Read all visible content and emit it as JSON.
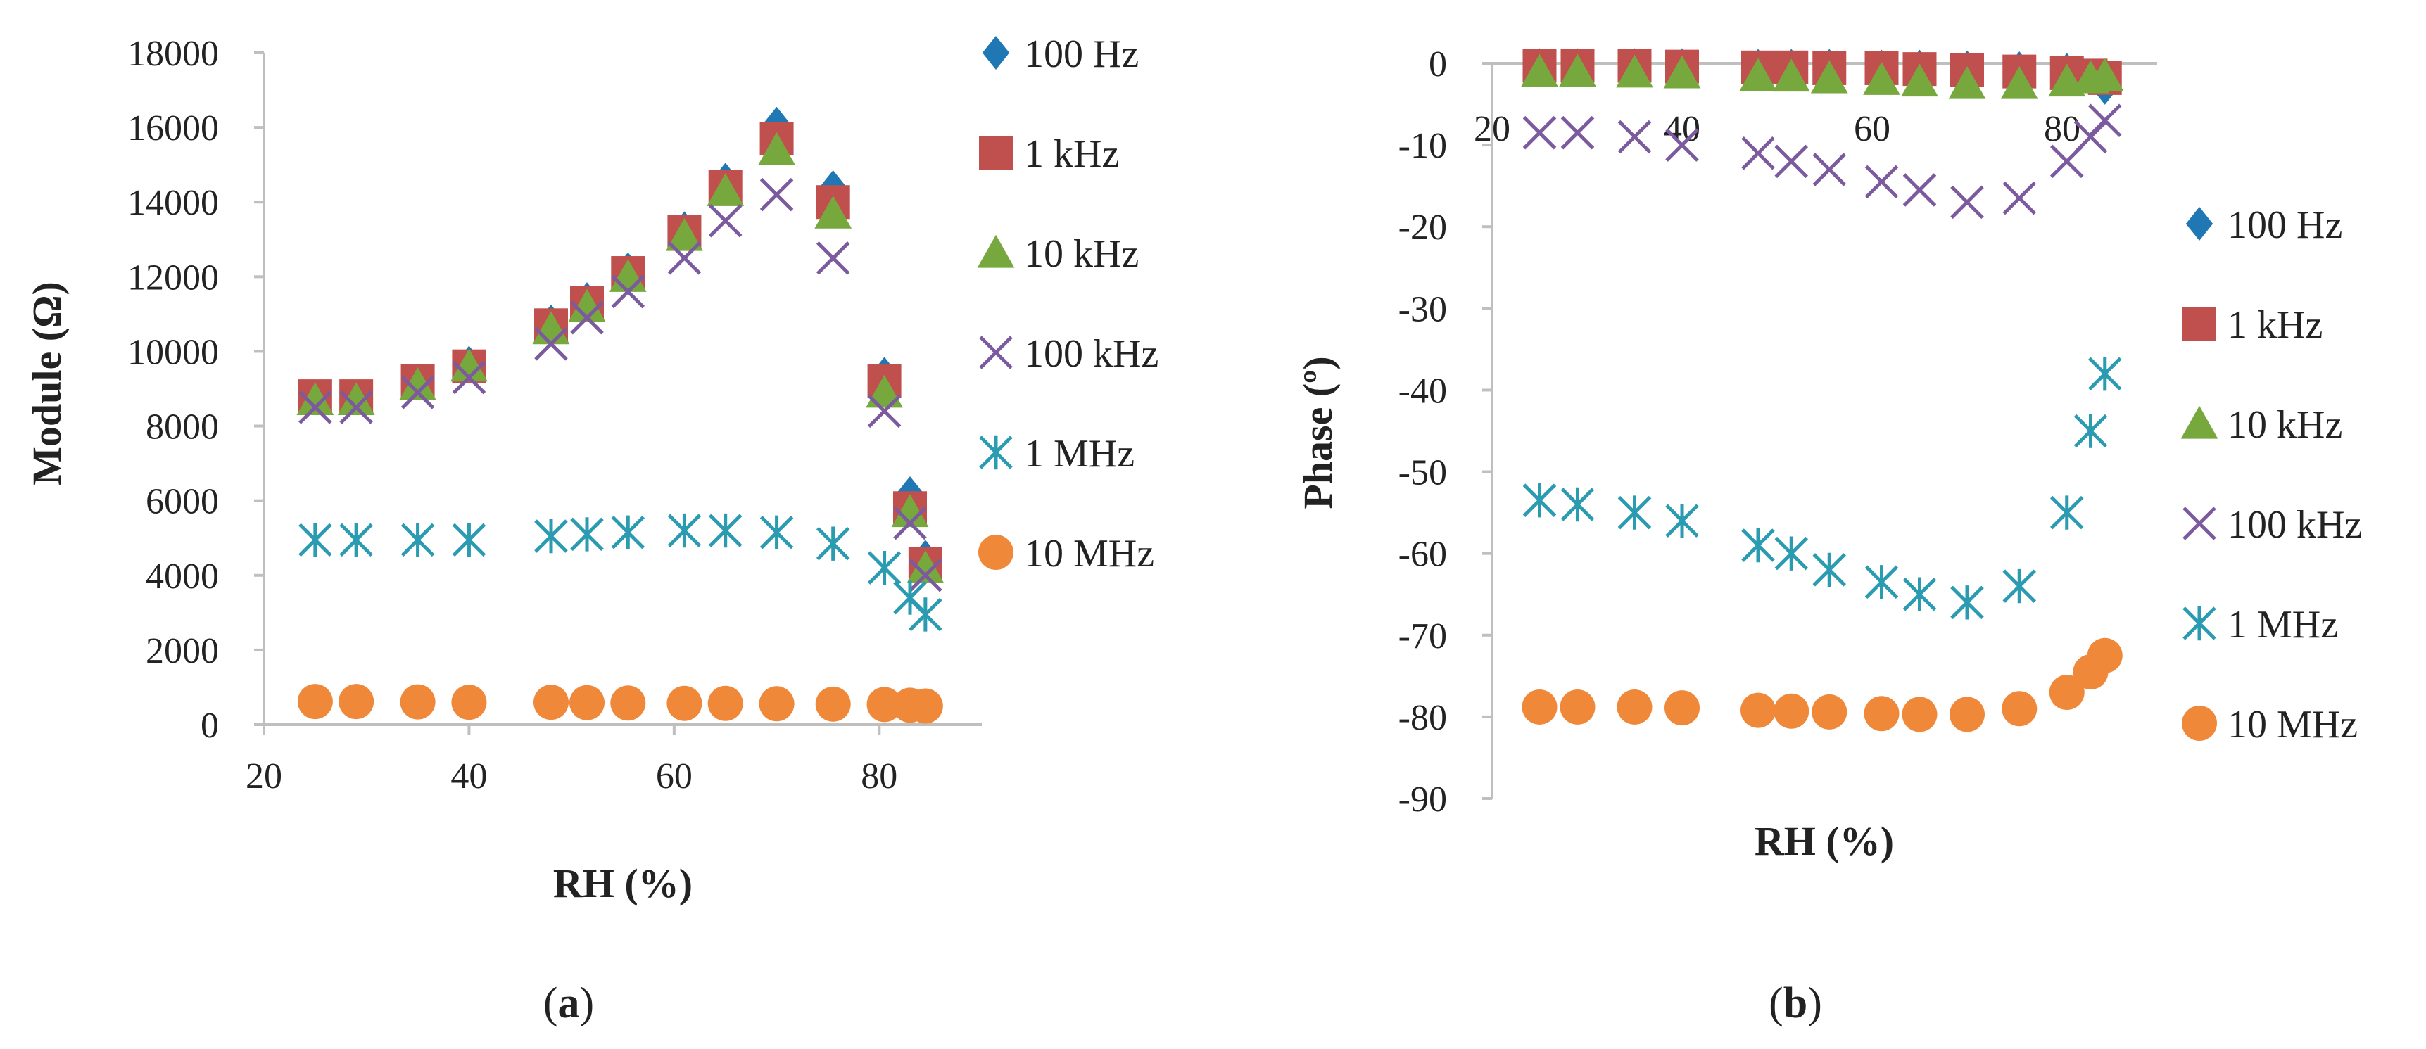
{
  "chart_data": [
    {
      "type": "scatter",
      "panel_label": "a",
      "xlabel": "RH (%)",
      "ylabel": "Module (Ω)",
      "xlim": [
        20,
        90
      ],
      "ylim": [
        0,
        18000
      ],
      "x_ticks": [
        20,
        40,
        60,
        80
      ],
      "y_ticks": [
        0,
        2000,
        4000,
        6000,
        8000,
        10000,
        12000,
        14000,
        16000,
        18000
      ],
      "legend_position": "right",
      "series": [
        {
          "name": "100 Hz",
          "marker": "diamond",
          "color": "#1F77B4",
          "x": [
            25,
            29,
            35,
            40,
            48,
            51.5,
            55.5,
            61,
            65,
            70,
            75.5,
            80.5,
            83,
            84.5
          ],
          "y": [
            8800,
            8800,
            9200,
            9700,
            10800,
            11400,
            12200,
            13300,
            14600,
            16100,
            14400,
            9400,
            6200,
            4500
          ]
        },
        {
          "name": "1 kHz",
          "marker": "square",
          "color": "#C0504D",
          "x": [
            25,
            29,
            35,
            40,
            48,
            51.5,
            55.5,
            61,
            65,
            70,
            75.5,
            80.5,
            83,
            84.5
          ],
          "y": [
            8800,
            8800,
            9200,
            9600,
            10700,
            11300,
            12100,
            13200,
            14400,
            15700,
            14000,
            9200,
            5800,
            4300
          ]
        },
        {
          "name": "10 kHz",
          "marker": "triangle",
          "color": "#77A83D",
          "x": [
            25,
            29,
            35,
            40,
            48,
            51.5,
            55.5,
            61,
            65,
            70,
            75.5,
            80.5,
            83,
            84.5
          ],
          "y": [
            8700,
            8700,
            9100,
            9600,
            10600,
            11200,
            12000,
            13100,
            14300,
            15400,
            13700,
            8900,
            5700,
            4200
          ]
        },
        {
          "name": "100 kHz",
          "marker": "x",
          "color": "#7B5A9E",
          "x": [
            25,
            29,
            35,
            40,
            48,
            51.5,
            55.5,
            61,
            65,
            70,
            75.5,
            80.5,
            83,
            84.5
          ],
          "y": [
            8500,
            8500,
            8900,
            9300,
            10200,
            10900,
            11600,
            12500,
            13500,
            14200,
            12500,
            8400,
            5400,
            4000
          ]
        },
        {
          "name": "1 MHz",
          "marker": "asterisk",
          "color": "#2A9BB0",
          "x": [
            25,
            29,
            35,
            40,
            48,
            51.5,
            55.5,
            61,
            65,
            70,
            75.5,
            80.5,
            83,
            84.5
          ],
          "y": [
            4950,
            4950,
            4950,
            4950,
            5050,
            5100,
            5150,
            5200,
            5200,
            5150,
            4850,
            4200,
            3400,
            2950
          ]
        },
        {
          "name": "10 MHz",
          "marker": "circle",
          "color": "#F0883A",
          "x": [
            25,
            29,
            35,
            40,
            48,
            51.5,
            55.5,
            61,
            65,
            70,
            75.5,
            80.5,
            83,
            84.5
          ],
          "y": [
            620,
            620,
            610,
            600,
            600,
            590,
            580,
            570,
            570,
            560,
            550,
            540,
            520,
            500
          ]
        }
      ]
    },
    {
      "type": "scatter",
      "panel_label": "b",
      "xlabel": "RH (%)",
      "ylabel": "Phase (º)",
      "xlim": [
        20,
        90
      ],
      "ylim": [
        -90,
        0
      ],
      "x_ticks": [
        20,
        40,
        60,
        80
      ],
      "x_tick_labels": [
        "20",
        "40",
        "60",
        "80"
      ],
      "y_ticks": [
        0,
        -10,
        -20,
        -30,
        -40,
        -50,
        -60,
        -70,
        -80,
        -90
      ],
      "legend_position": "right",
      "series": [
        {
          "name": "100 Hz",
          "marker": "diamond",
          "color": "#1F77B4",
          "x": [
            25,
            29,
            35,
            40,
            48,
            51.5,
            55.5,
            61,
            65,
            70,
            75.5,
            80.5,
            83,
            84.5
          ],
          "y": [
            -0.2,
            -0.2,
            -0.2,
            -0.2,
            -0.3,
            -0.3,
            -0.3,
            -0.4,
            -0.4,
            -0.5,
            -0.6,
            -0.8,
            -1.5,
            -3
          ]
        },
        {
          "name": "1 kHz",
          "marker": "square",
          "color": "#C0504D",
          "x": [
            25,
            29,
            35,
            40,
            48,
            51.5,
            55.5,
            61,
            65,
            70,
            75.5,
            80.5,
            83,
            84.5
          ],
          "y": [
            -0.3,
            -0.3,
            -0.3,
            -0.4,
            -0.5,
            -0.5,
            -0.6,
            -0.6,
            -0.7,
            -0.8,
            -1,
            -1.2,
            -1.5,
            -1.8
          ]
        },
        {
          "name": "10 kHz",
          "marker": "triangle",
          "color": "#77A83D",
          "x": [
            25,
            29,
            35,
            40,
            48,
            51.5,
            55.5,
            61,
            65,
            70,
            75.5,
            80.5,
            83,
            84.5
          ],
          "y": [
            -1,
            -1,
            -1.1,
            -1.2,
            -1.5,
            -1.6,
            -1.8,
            -2,
            -2.2,
            -2.5,
            -2.5,
            -2.2,
            -1.8,
            -1.5
          ]
        },
        {
          "name": "100 kHz",
          "marker": "x",
          "color": "#7B5A9E",
          "x": [
            25,
            29,
            35,
            40,
            48,
            51.5,
            55.5,
            61,
            65,
            70,
            75.5,
            80.5,
            83,
            84.5
          ],
          "y": [
            -8.5,
            -8.5,
            -9,
            -10,
            -11,
            -12,
            -13,
            -14.5,
            -15.5,
            -17,
            -16.5,
            -12,
            -9,
            -7
          ]
        },
        {
          "name": "1 MHz",
          "marker": "asterisk",
          "color": "#2A9BB0",
          "x": [
            25,
            29,
            35,
            40,
            48,
            51.5,
            55.5,
            61,
            65,
            70,
            75.5,
            80.5,
            83,
            84.5
          ],
          "y": [
            -53.5,
            -54,
            -55,
            -56,
            -59,
            -60,
            -62,
            -63.5,
            -65,
            -66,
            -64,
            -55,
            -45,
            -38
          ]
        },
        {
          "name": "10 MHz",
          "marker": "circle",
          "color": "#F0883A",
          "x": [
            25,
            29,
            35,
            40,
            48,
            51.5,
            55.5,
            61,
            65,
            70,
            75.5,
            80.5,
            83,
            84.5
          ],
          "y": [
            -78.8,
            -78.8,
            -78.8,
            -78.9,
            -79.2,
            -79.3,
            -79.4,
            -79.6,
            -79.7,
            -79.7,
            -79,
            -77,
            -74.5,
            -72.5
          ]
        }
      ]
    }
  ]
}
